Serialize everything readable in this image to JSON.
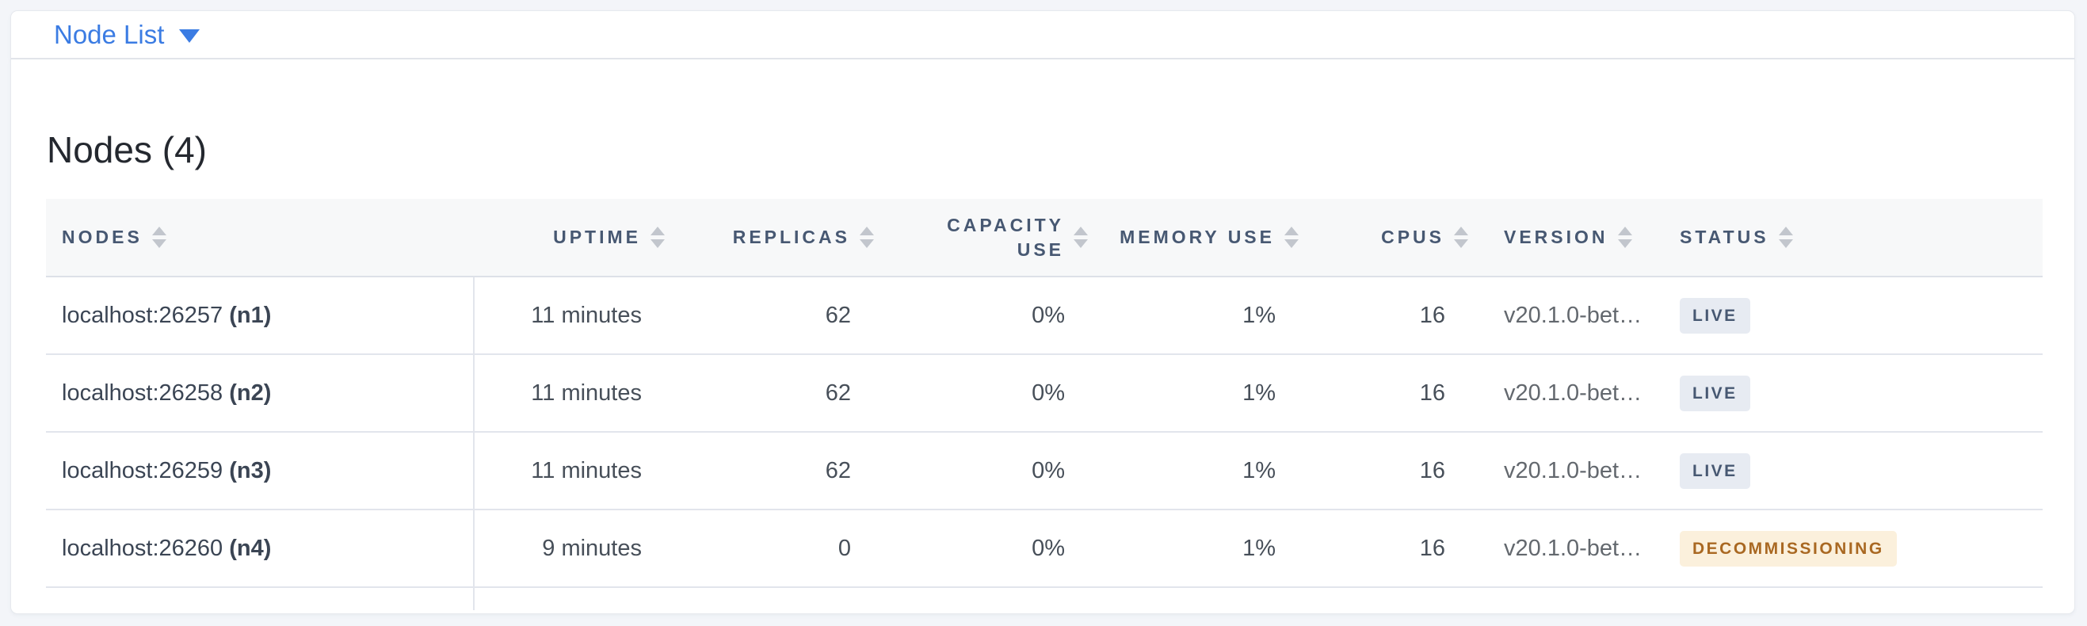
{
  "selector": {
    "label": "Node List"
  },
  "page": {
    "title": "Nodes (4)"
  },
  "table": {
    "columns": [
      {
        "key": "nodes",
        "label": "NODES",
        "align": "left"
      },
      {
        "key": "uptime",
        "label": "UPTIME",
        "align": "right"
      },
      {
        "key": "replicas",
        "label": "REPLICAS",
        "align": "right"
      },
      {
        "key": "capacity_use",
        "label": "CAPACITY USE",
        "align": "right"
      },
      {
        "key": "memory_use",
        "label": "MEMORY USE",
        "align": "right"
      },
      {
        "key": "cpus",
        "label": "CPUS",
        "align": "right"
      },
      {
        "key": "version",
        "label": "VERSION",
        "align": "left"
      },
      {
        "key": "status",
        "label": "STATUS",
        "align": "left"
      }
    ],
    "rows": [
      {
        "address": "localhost:26257",
        "node_id": "(n1)",
        "uptime": "11 minutes",
        "replicas": "62",
        "capacity_use": "0%",
        "memory_use": "1%",
        "cpus": "16",
        "version": "v20.1.0-bet…",
        "status": "LIVE",
        "status_type": "live"
      },
      {
        "address": "localhost:26258",
        "node_id": "(n2)",
        "uptime": "11 minutes",
        "replicas": "62",
        "capacity_use": "0%",
        "memory_use": "1%",
        "cpus": "16",
        "version": "v20.1.0-bet…",
        "status": "LIVE",
        "status_type": "live"
      },
      {
        "address": "localhost:26259",
        "node_id": "(n3)",
        "uptime": "11 minutes",
        "replicas": "62",
        "capacity_use": "0%",
        "memory_use": "1%",
        "cpus": "16",
        "version": "v20.1.0-bet…",
        "status": "LIVE",
        "status_type": "live"
      },
      {
        "address": "localhost:26260",
        "node_id": "(n4)",
        "uptime": "9 minutes",
        "replicas": "0",
        "capacity_use": "0%",
        "memory_use": "1%",
        "cpus": "16",
        "version": "v20.1.0-bet…",
        "status": "DECOMMISSIONING",
        "status_type": "decommissioning"
      }
    ]
  },
  "colors": {
    "accent_blue": "#3b7ce3",
    "header_text": "#475872",
    "body_text": "#474f59",
    "node_text": "#3b4554",
    "version_text": "#63686e",
    "badge_live_bg": "#e7ebf2",
    "badge_live_text": "#475872",
    "badge_decommissioning_bg": "#fbf0dc",
    "badge_decommissioning_text": "#a96822",
    "page_bg": "#f3f5f9",
    "card_bg": "#ffffff",
    "table_header_bg": "#f7f8f9",
    "row_border": "#e2e5ec"
  }
}
